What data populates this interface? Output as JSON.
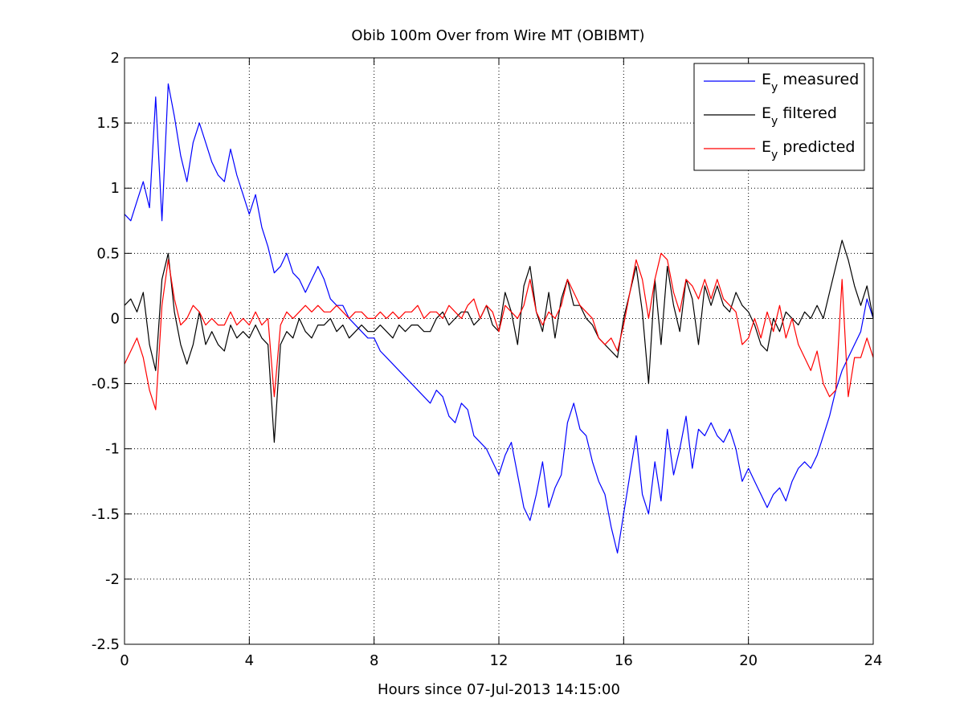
{
  "chart_data": {
    "type": "line",
    "title": "Obib 100m Over from Wire MT (OBIBMT)",
    "xlabel": "Hours since 07-Jul-2013 14:15:00",
    "ylabel": "",
    "xlim": [
      0,
      24
    ],
    "ylim": [
      -2.5,
      2
    ],
    "xticks": [
      0,
      4,
      8,
      12,
      16,
      20,
      24
    ],
    "xtick_labels": [
      "0",
      "4",
      "8",
      "12",
      "16",
      "20",
      "24"
    ],
    "yticks": [
      2,
      1.5,
      1,
      0.5,
      0,
      -0.5,
      -1,
      -1.5,
      -2,
      -2.5
    ],
    "ytick_labels": [
      "2",
      "1.5",
      "1",
      "0.5",
      "0",
      "-0.5",
      "-1",
      "-1.5",
      "-2",
      "-2.5"
    ],
    "grid": true,
    "legend_position": "top-right",
    "series": [
      {
        "name": "E_y measured",
        "legend_main": "E",
        "legend_sub": "y",
        "legend_rest": " measured",
        "color": "#0000ff",
        "x": [
          0,
          0.2,
          0.4,
          0.6,
          0.8,
          1.0,
          1.2,
          1.4,
          1.6,
          1.8,
          2.0,
          2.2,
          2.4,
          2.6,
          2.8,
          3.0,
          3.2,
          3.4,
          3.6,
          3.8,
          4.0,
          4.2,
          4.4,
          4.6,
          4.8,
          5.0,
          5.2,
          5.4,
          5.6,
          5.8,
          6.0,
          6.2,
          6.4,
          6.6,
          6.8,
          7.0,
          7.2,
          7.4,
          7.6,
          7.8,
          8.0,
          8.2,
          8.4,
          8.6,
          8.8,
          9.0,
          9.2,
          9.4,
          9.6,
          9.8,
          10.0,
          10.2,
          10.4,
          10.6,
          10.8,
          11.0,
          11.2,
          11.4,
          11.6,
          11.8,
          12.0,
          12.2,
          12.4,
          12.6,
          12.8,
          13.0,
          13.2,
          13.4,
          13.6,
          13.8,
          14.0,
          14.2,
          14.4,
          14.6,
          14.8,
          15.0,
          15.2,
          15.4,
          15.6,
          15.8,
          16.0,
          16.2,
          16.4,
          16.6,
          16.8,
          17.0,
          17.2,
          17.4,
          17.6,
          17.8,
          18.0,
          18.2,
          18.4,
          18.6,
          18.8,
          19.0,
          19.2,
          19.4,
          19.6,
          19.8,
          20.0,
          20.2,
          20.4,
          20.6,
          20.8,
          21.0,
          21.2,
          21.4,
          21.6,
          21.8,
          22.0,
          22.2,
          22.4,
          22.6,
          22.8,
          23.0,
          23.2,
          23.4,
          23.6,
          23.8,
          24.0
        ],
        "y": [
          0.8,
          0.75,
          0.9,
          1.05,
          0.85,
          1.7,
          0.75,
          1.8,
          1.55,
          1.25,
          1.05,
          1.35,
          1.5,
          1.35,
          1.2,
          1.1,
          1.05,
          1.3,
          1.1,
          0.95,
          0.8,
          0.95,
          0.7,
          0.55,
          0.35,
          0.4,
          0.5,
          0.35,
          0.3,
          0.2,
          0.3,
          0.4,
          0.3,
          0.15,
          0.1,
          0.1,
          0.0,
          -0.05,
          -0.1,
          -0.15,
          -0.15,
          -0.25,
          -0.3,
          -0.35,
          -0.4,
          -0.45,
          -0.5,
          -0.55,
          -0.6,
          -0.65,
          -0.55,
          -0.6,
          -0.75,
          -0.8,
          -0.65,
          -0.7,
          -0.9,
          -0.95,
          -1.0,
          -1.1,
          -1.2,
          -1.05,
          -0.95,
          -1.2,
          -1.45,
          -1.55,
          -1.35,
          -1.1,
          -1.45,
          -1.3,
          -1.2,
          -0.8,
          -0.65,
          -0.85,
          -0.9,
          -1.1,
          -1.25,
          -1.35,
          -1.6,
          -1.8,
          -1.5,
          -1.2,
          -0.9,
          -1.35,
          -1.5,
          -1.1,
          -1.4,
          -0.85,
          -1.2,
          -1.0,
          -0.75,
          -1.15,
          -0.85,
          -0.9,
          -0.8,
          -0.9,
          -0.95,
          -0.85,
          -1.0,
          -1.25,
          -1.15,
          -1.25,
          -1.35,
          -1.45,
          -1.35,
          -1.3,
          -1.4,
          -1.25,
          -1.15,
          -1.1,
          -1.15,
          -1.05,
          -0.9,
          -0.75,
          -0.55,
          -0.4,
          -0.3,
          -0.2,
          -0.1,
          0.15,
          0.0
        ]
      },
      {
        "name": "E_y filtered",
        "legend_main": "E",
        "legend_sub": "y",
        "legend_rest": " filtered",
        "color": "#000000",
        "x": [
          0,
          0.2,
          0.4,
          0.6,
          0.8,
          1.0,
          1.2,
          1.4,
          1.6,
          1.8,
          2.0,
          2.2,
          2.4,
          2.6,
          2.8,
          3.0,
          3.2,
          3.4,
          3.6,
          3.8,
          4.0,
          4.2,
          4.4,
          4.6,
          4.8,
          5.0,
          5.2,
          5.4,
          5.6,
          5.8,
          6.0,
          6.2,
          6.4,
          6.6,
          6.8,
          7.0,
          7.2,
          7.4,
          7.6,
          7.8,
          8.0,
          8.2,
          8.4,
          8.6,
          8.8,
          9.0,
          9.2,
          9.4,
          9.6,
          9.8,
          10.0,
          10.2,
          10.4,
          10.6,
          10.8,
          11.0,
          11.2,
          11.4,
          11.6,
          11.8,
          12.0,
          12.2,
          12.4,
          12.6,
          12.8,
          13.0,
          13.2,
          13.4,
          13.6,
          13.8,
          14.0,
          14.2,
          14.4,
          14.6,
          14.8,
          15.0,
          15.2,
          15.4,
          15.6,
          15.8,
          16.0,
          16.2,
          16.4,
          16.6,
          16.8,
          17.0,
          17.2,
          17.4,
          17.6,
          17.8,
          18.0,
          18.2,
          18.4,
          18.6,
          18.8,
          19.0,
          19.2,
          19.4,
          19.6,
          19.8,
          20.0,
          20.2,
          20.4,
          20.6,
          20.8,
          21.0,
          21.2,
          21.4,
          21.6,
          21.8,
          22.0,
          22.2,
          22.4,
          22.6,
          22.8,
          23.0,
          23.2,
          23.4,
          23.6,
          23.8,
          24.0
        ],
        "y": [
          0.1,
          0.15,
          0.05,
          0.2,
          -0.2,
          -0.4,
          0.3,
          0.5,
          0.05,
          -0.2,
          -0.35,
          -0.2,
          0.05,
          -0.2,
          -0.1,
          -0.2,
          -0.25,
          -0.05,
          -0.15,
          -0.1,
          -0.15,
          -0.05,
          -0.15,
          -0.2,
          -0.95,
          -0.2,
          -0.1,
          -0.15,
          0.0,
          -0.1,
          -0.15,
          -0.05,
          -0.05,
          0.0,
          -0.1,
          -0.05,
          -0.15,
          -0.1,
          -0.05,
          -0.1,
          -0.1,
          -0.05,
          -0.1,
          -0.15,
          -0.05,
          -0.1,
          -0.05,
          -0.05,
          -0.1,
          -0.1,
          0.0,
          0.05,
          -0.05,
          0.0,
          0.05,
          0.05,
          -0.05,
          0.0,
          0.1,
          -0.05,
          -0.1,
          0.2,
          0.05,
          -0.2,
          0.25,
          0.4,
          0.05,
          -0.1,
          0.2,
          -0.15,
          0.15,
          0.3,
          0.1,
          0.1,
          0.0,
          -0.05,
          -0.15,
          -0.2,
          -0.25,
          -0.3,
          0.0,
          0.2,
          0.4,
          0.05,
          -0.5,
          0.3,
          -0.2,
          0.4,
          0.1,
          -0.1,
          0.3,
          0.15,
          -0.2,
          0.25,
          0.1,
          0.25,
          0.1,
          0.05,
          0.2,
          0.1,
          0.05,
          -0.05,
          -0.2,
          -0.25,
          0.0,
          -0.1,
          0.05,
          0.0,
          -0.05,
          0.05,
          0.0,
          0.1,
          0.0,
          0.2,
          0.4,
          0.6,
          0.45,
          0.25,
          0.1,
          0.25,
          0.0
        ]
      },
      {
        "name": "E_y predicted",
        "legend_main": "E",
        "legend_sub": "y",
        "legend_rest": " predicted",
        "color": "#ff0000",
        "x": [
          0,
          0.2,
          0.4,
          0.6,
          0.8,
          1.0,
          1.2,
          1.4,
          1.6,
          1.8,
          2.0,
          2.2,
          2.4,
          2.6,
          2.8,
          3.0,
          3.2,
          3.4,
          3.6,
          3.8,
          4.0,
          4.2,
          4.4,
          4.6,
          4.8,
          5.0,
          5.2,
          5.4,
          5.6,
          5.8,
          6.0,
          6.2,
          6.4,
          6.6,
          6.8,
          7.0,
          7.2,
          7.4,
          7.6,
          7.8,
          8.0,
          8.2,
          8.4,
          8.6,
          8.8,
          9.0,
          9.2,
          9.4,
          9.6,
          9.8,
          10.0,
          10.2,
          10.4,
          10.6,
          10.8,
          11.0,
          11.2,
          11.4,
          11.6,
          11.8,
          12.0,
          12.2,
          12.4,
          12.6,
          12.8,
          13.0,
          13.2,
          13.4,
          13.6,
          13.8,
          14.0,
          14.2,
          14.4,
          14.6,
          14.8,
          15.0,
          15.2,
          15.4,
          15.6,
          15.8,
          16.0,
          16.2,
          16.4,
          16.6,
          16.8,
          17.0,
          17.2,
          17.4,
          17.6,
          17.8,
          18.0,
          18.2,
          18.4,
          18.6,
          18.8,
          19.0,
          19.2,
          19.4,
          19.6,
          19.8,
          20.0,
          20.2,
          20.4,
          20.6,
          20.8,
          21.0,
          21.2,
          21.4,
          21.6,
          21.8,
          22.0,
          22.2,
          22.4,
          22.6,
          22.8,
          23.0,
          23.2,
          23.4,
          23.6,
          23.8,
          24.0
        ],
        "y": [
          -0.35,
          -0.25,
          -0.15,
          -0.3,
          -0.55,
          -0.7,
          0.1,
          0.45,
          0.15,
          -0.05,
          0.0,
          0.1,
          0.05,
          -0.05,
          0.0,
          -0.05,
          -0.05,
          0.05,
          -0.05,
          0.0,
          -0.05,
          0.05,
          -0.05,
          0.0,
          -0.6,
          -0.05,
          0.05,
          0.0,
          0.05,
          0.1,
          0.05,
          0.1,
          0.05,
          0.05,
          0.1,
          0.05,
          0.0,
          0.05,
          0.05,
          0.0,
          0.0,
          0.05,
          0.0,
          0.05,
          0.0,
          0.05,
          0.05,
          0.1,
          0.0,
          0.05,
          0.05,
          0.0,
          0.1,
          0.05,
          0.0,
          0.1,
          0.15,
          0.0,
          0.1,
          0.05,
          -0.1,
          0.1,
          0.05,
          0.0,
          0.1,
          0.3,
          0.05,
          -0.05,
          0.05,
          0.0,
          0.1,
          0.3,
          0.2,
          0.1,
          0.05,
          0.0,
          -0.15,
          -0.2,
          -0.15,
          -0.25,
          -0.05,
          0.2,
          0.45,
          0.3,
          0.0,
          0.3,
          0.5,
          0.45,
          0.2,
          0.05,
          0.3,
          0.25,
          0.15,
          0.3,
          0.15,
          0.3,
          0.15,
          0.1,
          0.05,
          -0.2,
          -0.15,
          0.0,
          -0.15,
          0.05,
          -0.1,
          0.1,
          -0.15,
          0.0,
          -0.2,
          -0.3,
          -0.4,
          -0.25,
          -0.5,
          -0.6,
          -0.55,
          0.3,
          -0.6,
          -0.3,
          -0.3,
          -0.15,
          -0.3
        ]
      }
    ]
  }
}
